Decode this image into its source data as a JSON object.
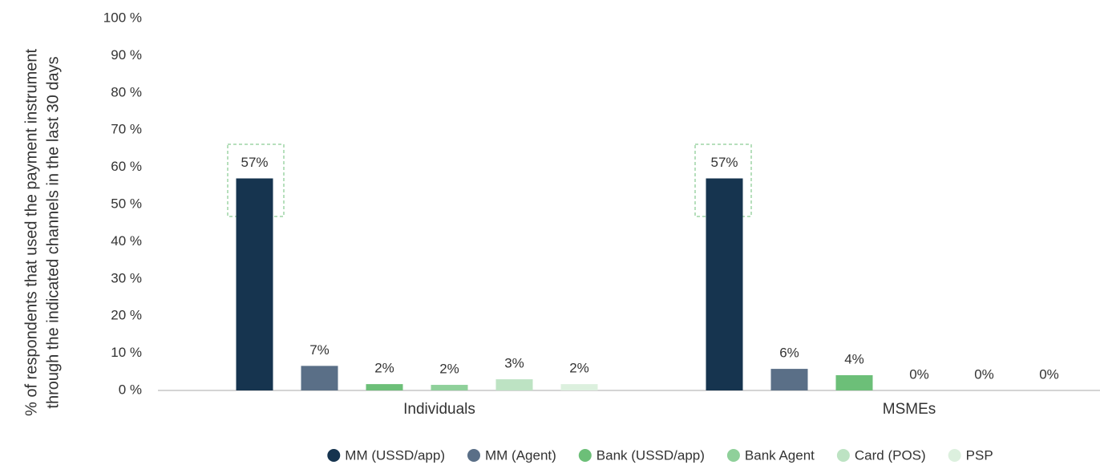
{
  "chart_data": {
    "type": "bar",
    "ylabel": [
      "% of respondents that used the payment instrument",
      "through the indicated channels in the last 30 days"
    ],
    "categories": [
      "Individuals",
      "MSMEs"
    ],
    "series": [
      {
        "name": "MM (USSD/app)",
        "color": "#16344f",
        "values": [
          57,
          57
        ],
        "value_labels": [
          "57%",
          "57%"
        ]
      },
      {
        "name": "MM (Agent)",
        "color": "#5a6f87",
        "values": [
          6.6,
          5.8
        ],
        "value_labels": [
          "7%",
          "6%"
        ]
      },
      {
        "name": "Bank (USSD/app)",
        "color": "#6cbf78",
        "values": [
          1.7,
          4.1
        ],
        "value_labels": [
          "2%",
          "4%"
        ]
      },
      {
        "name": "Bank Agent",
        "color": "#8fd09a",
        "values": [
          1.5,
          0
        ],
        "value_labels": [
          "2%",
          "0%"
        ]
      },
      {
        "name": "Card (POS)",
        "color": "#bde3c3",
        "values": [
          3,
          0
        ],
        "value_labels": [
          "3%",
          "0%"
        ]
      },
      {
        "name": "PSP",
        "color": "#dcf0de",
        "values": [
          1.7,
          0
        ],
        "value_labels": [
          "2%",
          "0%"
        ]
      }
    ],
    "ylim": [
      0,
      100
    ],
    "yticks": [
      {
        "value": 0,
        "label": "0 %"
      },
      {
        "value": 10,
        "label": "10 %"
      },
      {
        "value": 20,
        "label": "20 %"
      },
      {
        "value": 30,
        "label": "30 %"
      },
      {
        "value": 40,
        "label": "40 %"
      },
      {
        "value": 50,
        "label": "50 %"
      },
      {
        "value": 60,
        "label": "60 %"
      },
      {
        "value": 70,
        "label": "70 %"
      },
      {
        "value": 80,
        "label": "80 %"
      },
      {
        "value": 90,
        "label": "90 %"
      },
      {
        "value": 100,
        "label": "100 %"
      }
    ],
    "legend": "bottom"
  }
}
